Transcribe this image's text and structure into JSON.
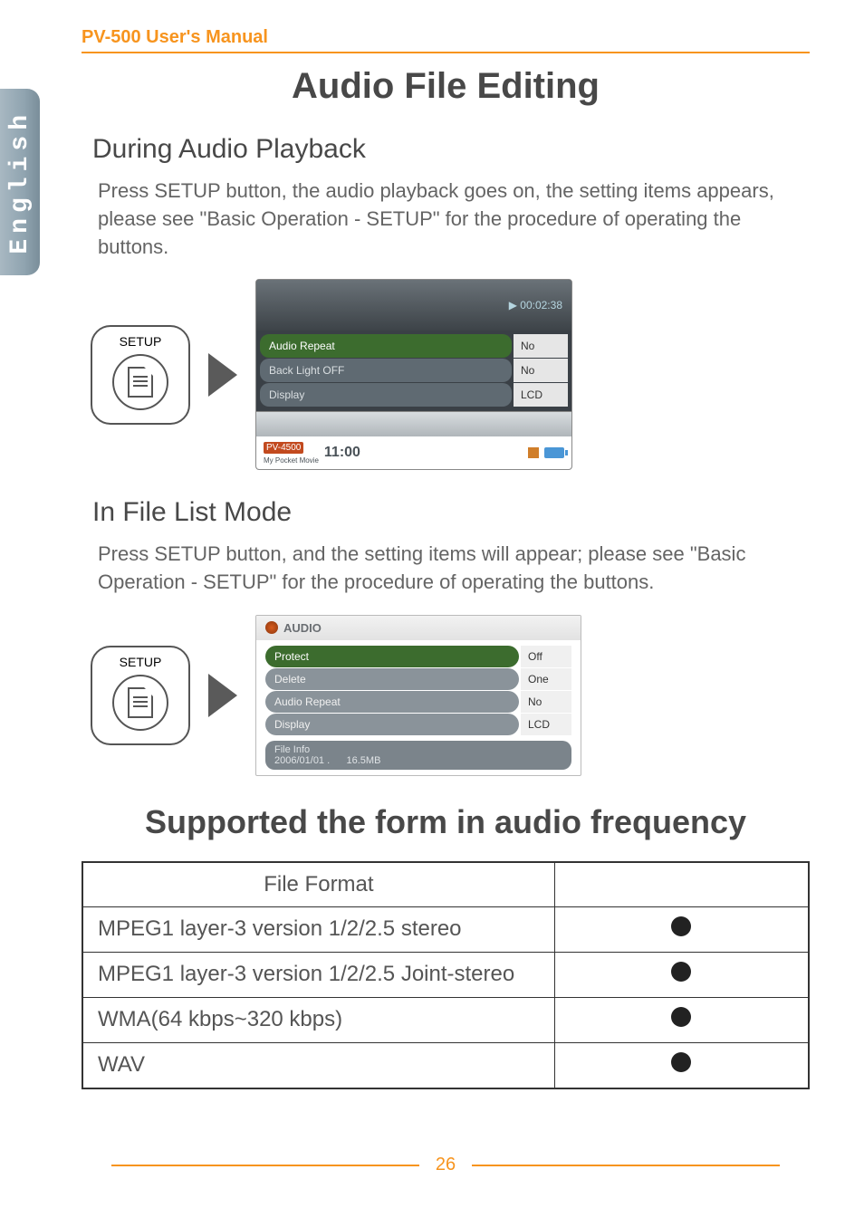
{
  "doc": {
    "header": "PV-500 User's Manual",
    "main_title": "Audio File Editing",
    "section1": {
      "heading": "During Audio Playback",
      "body": "Press SETUP button, the audio playback goes on, the setting items appears, please see \"Basic Operation - SETUP\" for the procedure of operating the buttons.",
      "setup_label": "SETUP",
      "screenshot": {
        "timestamp": "▶ 00:02:38",
        "rows": [
          {
            "label": "Audio Repeat",
            "value": "No",
            "active": true
          },
          {
            "label": "Back Light OFF",
            "value": "No",
            "active": false
          },
          {
            "label": "Display",
            "value": "LCD",
            "active": false
          }
        ],
        "footer_brand": "PV-4500",
        "footer_sub": "My Pocket Movie",
        "footer_time": "11:00"
      }
    },
    "section2": {
      "heading": "In File List Mode",
      "body": "Press SETUP button, and the setting items will appear; please see \"Basic Operation - SETUP\" for the procedure of operating the buttons.",
      "setup_label": "SETUP",
      "screenshot": {
        "tab": "AUDIO",
        "rows": [
          {
            "label": "Protect",
            "value": "Off",
            "active": true
          },
          {
            "label": "Delete",
            "value": "One",
            "active": false
          },
          {
            "label": "Audio Repeat",
            "value": "No",
            "active": false
          },
          {
            "label": "Display",
            "value": "LCD",
            "active": false
          }
        ],
        "info_title": "File Info",
        "info_date": "2006/01/01 .",
        "info_size": "16.5MB"
      }
    },
    "second_title": "Supported the form in audio frequency",
    "table": {
      "header": "File Format",
      "rows": [
        {
          "name": "MPEG1 layer-3 version 1/2/2.5 stereo",
          "supported": true
        },
        {
          "name": "MPEG1 layer-3 version 1/2/2.5 Joint-stereo",
          "supported": true
        },
        {
          "name": "WMA(64 kbps~320 kbps)",
          "supported": true
        },
        {
          "name": "WAV",
          "supported": true
        }
      ]
    },
    "page_number": "26"
  },
  "colors": {
    "accent": "#f7941e",
    "heading": "#484848",
    "body": "#646464",
    "sidebar_text": "#ffffff"
  }
}
